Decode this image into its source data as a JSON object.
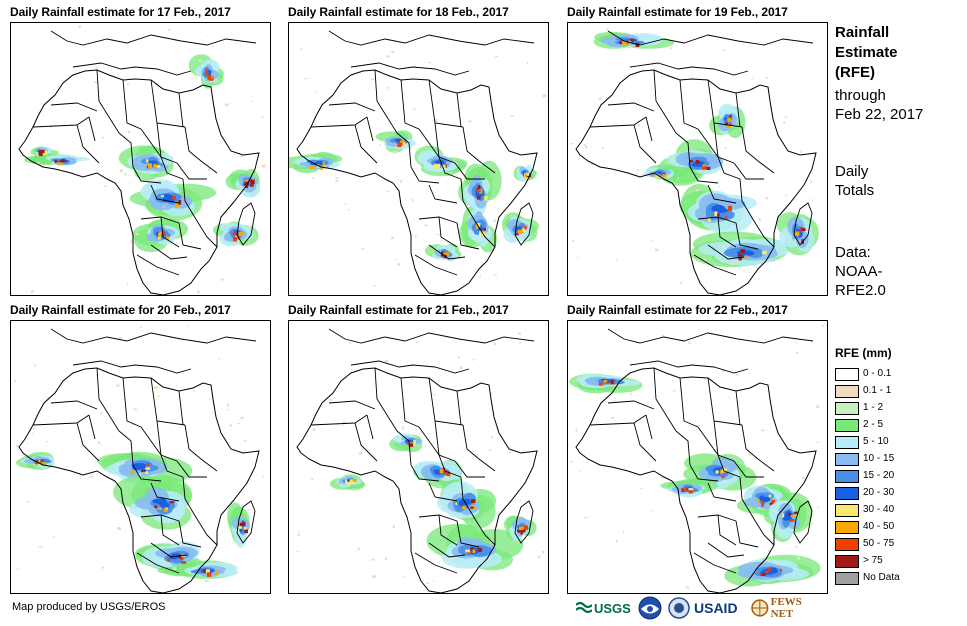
{
  "panels": [
    {
      "title": "Daily Rainfall estimate for 17 Feb., 2017"
    },
    {
      "title": "Daily Rainfall estimate for 18 Feb., 2017"
    },
    {
      "title": "Daily Rainfall estimate for 19 Feb., 2017"
    },
    {
      "title": "Daily Rainfall estimate for 20 Feb., 2017"
    },
    {
      "title": "Daily Rainfall estimate for 21 Feb., 2017"
    },
    {
      "title": "Daily Rainfall estimate for 22 Feb., 2017"
    }
  ],
  "sidebar": {
    "title_line1": "Rainfall",
    "title_line2": "Estimate",
    "title_line3": "(RFE)",
    "through_label": "through",
    "through_date": "Feb 22, 2017",
    "totals_line1": "Daily",
    "totals_line2": "Totals",
    "data_line1": "Data:",
    "data_line2": "NOAA-",
    "data_line3": "RFE2.0"
  },
  "legend": {
    "title": "RFE (mm)",
    "items": [
      {
        "label": "0 - 0.1",
        "color": "#ffffff"
      },
      {
        "label": "0.1 - 1",
        "color": "#f0dcc0"
      },
      {
        "label": "1 - 2",
        "color": "#c8f0c0"
      },
      {
        "label": "2 - 5",
        "color": "#78e878"
      },
      {
        "label": "5 - 10",
        "color": "#b8ecf8"
      },
      {
        "label": "10 - 15",
        "color": "#88bcf0"
      },
      {
        "label": "15 - 20",
        "color": "#4890e8"
      },
      {
        "label": "20 - 30",
        "color": "#1860e0"
      },
      {
        "label": "30 - 40",
        "color": "#f8e870"
      },
      {
        "label": "40 - 50",
        "color": "#f8a800"
      },
      {
        "label": "50 - 75",
        "color": "#f04000"
      },
      {
        "label": "> 75",
        "color": "#a01818"
      },
      {
        "label": "No Data",
        "color": "#a0a0a0"
      }
    ]
  },
  "footer": {
    "credit": "Map produced by USGS/EROS",
    "logo_usgs": "USGS",
    "logo_noaa": "NOAA",
    "logo_usaid": "USAID",
    "logo_fews": "FEWS NET"
  }
}
